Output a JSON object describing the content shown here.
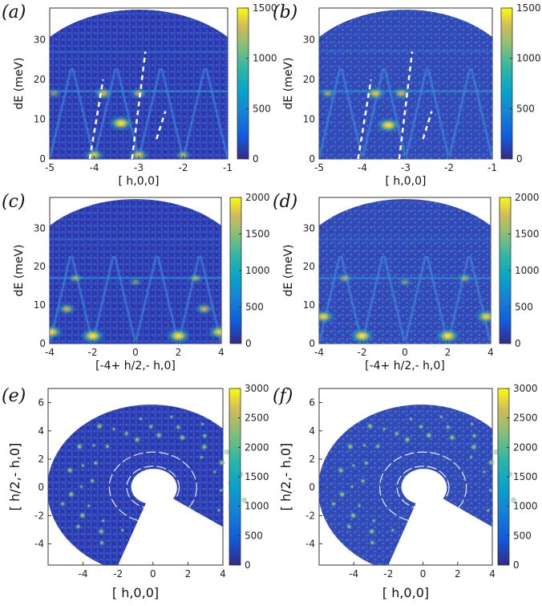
{
  "colors": {
    "map_low": "#33338c",
    "map_mid": "#2ab0b0",
    "map_high": "#f5e01a",
    "cut_mark": "#ffffff"
  },
  "chart_data": [
    {
      "panel_label": "(a)",
      "type": "heatmap",
      "shape": "dome",
      "xlabel": "[ h,0,0]",
      "ylabel": "dE (meV)",
      "xlim": [
        -5,
        -1
      ],
      "ylim": [
        0,
        38
      ],
      "xticks": [
        -5,
        -4,
        -3,
        -2,
        -1
      ],
      "yticks": [
        0,
        10,
        20,
        30
      ],
      "xtick_labels": [
        "-5",
        "-4",
        "-3",
        "-2",
        "-1"
      ],
      "ytick_labels": [
        "0",
        "10",
        "20",
        "30"
      ],
      "colorbar": {
        "min": 0,
        "max": 1500,
        "ticks": [
          0,
          500,
          1000,
          1500
        ],
        "labels": [
          "0",
          "500",
          "1000",
          "1500"
        ]
      },
      "hotspots": [
        {
          "x": -3.4,
          "y": 9,
          "intensity": 1.0
        },
        {
          "x": -3.8,
          "y": 16.5,
          "intensity": 0.75
        },
        {
          "x": -3.0,
          "y": 16.5,
          "intensity": 0.65
        },
        {
          "x": -4.9,
          "y": 16.5,
          "intensity": 0.5
        },
        {
          "x": -4.0,
          "y": 1,
          "intensity": 0.8
        },
        {
          "x": -3.0,
          "y": 1,
          "intensity": 0.8
        },
        {
          "x": -2.0,
          "y": 1,
          "intensity": 0.6
        }
      ]
    },
    {
      "panel_label": "(b)",
      "type": "heatmap",
      "shape": "dome",
      "xlabel": "[ h,0,0]",
      "ylabel": "dE (meV)",
      "xlim": [
        -5,
        -1
      ],
      "ylim": [
        0,
        38
      ],
      "xticks": [
        -5,
        -4,
        -3,
        -2,
        -1
      ],
      "yticks": [
        0,
        10,
        20,
        30
      ],
      "xtick_labels": [
        "-5",
        "-4",
        "-3",
        "-2",
        "-1"
      ],
      "ytick_labels": [
        "0",
        "10",
        "20",
        "30"
      ],
      "colorbar": {
        "min": 0,
        "max": 1500,
        "ticks": [
          0,
          500,
          1000,
          1500
        ],
        "labels": [
          "0",
          "500",
          "1000",
          "1500"
        ]
      },
      "hotspots": [
        {
          "x": -3.4,
          "y": 8.5,
          "intensity": 1.0
        },
        {
          "x": -3.7,
          "y": 16.5,
          "intensity": 0.8
        },
        {
          "x": -3.1,
          "y": 16.5,
          "intensity": 0.7
        },
        {
          "x": -4.8,
          "y": 16.5,
          "intensity": 0.55
        }
      ]
    },
    {
      "panel_label": "(c)",
      "type": "heatmap",
      "shape": "dome",
      "xlabel": "[-4+ h/2,- h,0]",
      "ylabel": "dE (meV)",
      "xlim": [
        -4,
        4
      ],
      "ylim": [
        0,
        38
      ],
      "xticks": [
        -4,
        -2,
        0,
        2,
        4
      ],
      "yticks": [
        0,
        10,
        20,
        30
      ],
      "xtick_labels": [
        "-4",
        "-2",
        "0",
        "2",
        "4"
      ],
      "ytick_labels": [
        "0",
        "10",
        "20",
        "30"
      ],
      "colorbar": {
        "min": 0,
        "max": 2000,
        "ticks": [
          0,
          500,
          1000,
          1500,
          2000
        ],
        "labels": [
          "0",
          "500",
          "1000",
          "1500",
          "2000"
        ]
      },
      "hotspots": [
        {
          "x": -2.0,
          "y": 2,
          "intensity": 1.0
        },
        {
          "x": 2.0,
          "y": 2,
          "intensity": 1.0
        },
        {
          "x": -3.9,
          "y": 3,
          "intensity": 0.9
        },
        {
          "x": 3.9,
          "y": 3,
          "intensity": 0.9
        },
        {
          "x": -3.2,
          "y": 9,
          "intensity": 0.7
        },
        {
          "x": 3.2,
          "y": 9,
          "intensity": 0.7
        },
        {
          "x": -2.8,
          "y": 17,
          "intensity": 0.55
        },
        {
          "x": 2.8,
          "y": 17,
          "intensity": 0.55
        },
        {
          "x": 0.0,
          "y": 16,
          "intensity": 0.45
        }
      ]
    },
    {
      "panel_label": "(d)",
      "type": "heatmap",
      "shape": "dome",
      "xlabel": "[-4+ h/2,- h,0]",
      "ylabel": "dE (meV)",
      "xlim": [
        -4,
        4
      ],
      "ylim": [
        0,
        38
      ],
      "xticks": [
        -4,
        -2,
        0,
        2,
        4
      ],
      "yticks": [
        0,
        10,
        20,
        30
      ],
      "xtick_labels": [
        "-4",
        "-2",
        "0",
        "2",
        "4"
      ],
      "ytick_labels": [
        "0",
        "10",
        "20",
        "30"
      ],
      "colorbar": {
        "min": 0,
        "max": 2000,
        "ticks": [
          0,
          500,
          1000,
          1500,
          2000
        ],
        "labels": [
          "0",
          "500",
          "1000",
          "1500",
          "2000"
        ]
      },
      "hotspots": [
        {
          "x": -2.0,
          "y": 2,
          "intensity": 1.0
        },
        {
          "x": 2.0,
          "y": 2,
          "intensity": 1.0
        },
        {
          "x": -3.8,
          "y": 7,
          "intensity": 0.9
        },
        {
          "x": 3.8,
          "y": 7,
          "intensity": 0.9
        },
        {
          "x": -2.8,
          "y": 17,
          "intensity": 0.55
        },
        {
          "x": 2.8,
          "y": 17,
          "intensity": 0.55
        },
        {
          "x": 0.0,
          "y": 16,
          "intensity": 0.45
        }
      ]
    },
    {
      "panel_label": "(e)",
      "type": "heatmap",
      "shape": "spiral",
      "xlabel": "[ h,0,0]",
      "ylabel": "[ h/2,- h,0]",
      "xlim": [
        -6,
        4
      ],
      "ylim": [
        -5.5,
        7
      ],
      "xticks": [
        -4,
        -2,
        0,
        2,
        4
      ],
      "yticks": [
        -4,
        -2,
        0,
        2,
        4,
        6
      ],
      "xtick_labels": [
        "-4",
        "-2",
        "0",
        "2",
        "4"
      ],
      "ytick_labels": [
        "-4",
        "-2",
        "0",
        "2",
        "4",
        "6"
      ],
      "colorbar": {
        "min": 0,
        "max": 3000,
        "ticks": [
          0,
          500,
          1000,
          1500,
          2000,
          2500,
          3000
        ],
        "labels": [
          "0",
          "500",
          "1000",
          "1500",
          "2000",
          "2500",
          "3000"
        ]
      }
    },
    {
      "panel_label": "(f)",
      "type": "heatmap",
      "shape": "spiral",
      "xlabel": "[ h,0,0]",
      "ylabel": "[ h/2,- h,0]",
      "xlim": [
        -6,
        4
      ],
      "ylim": [
        -5.5,
        7
      ],
      "xticks": [
        -4,
        -2,
        0,
        2,
        4
      ],
      "yticks": [
        -4,
        -2,
        0,
        2,
        4,
        6
      ],
      "xtick_labels": [
        "-4",
        "-2",
        "0",
        "2",
        "4"
      ],
      "ytick_labels": [
        "-4",
        "-2",
        "0",
        "2",
        "4",
        "6"
      ],
      "colorbar": {
        "min": 0,
        "max": 3000,
        "ticks": [
          0,
          500,
          1000,
          1500,
          2000,
          2500,
          3000
        ],
        "labels": [
          "0",
          "500",
          "1000",
          "1500",
          "2000",
          "2500",
          "3000"
        ]
      }
    }
  ]
}
